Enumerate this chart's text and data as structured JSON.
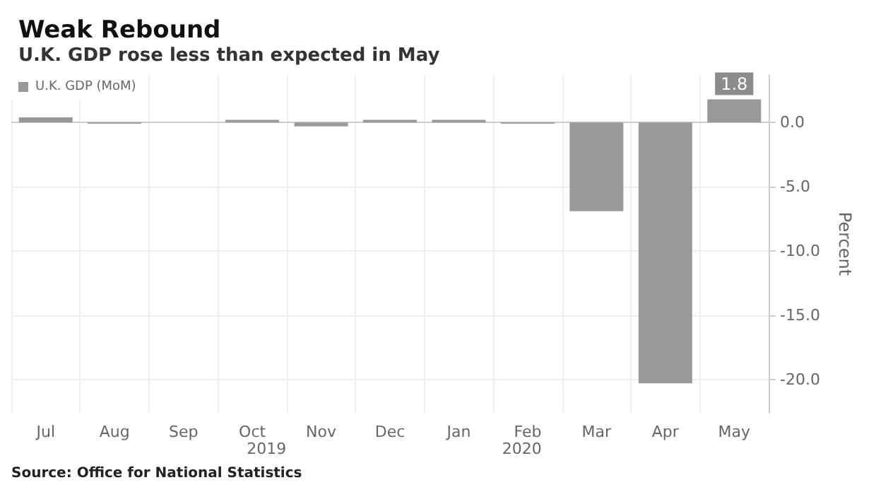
{
  "chart_data": {
    "type": "bar",
    "title": "Weak Rebound",
    "subtitle": "U.K. GDP rose less than expected in May",
    "ylabel": "Percent",
    "categories": [
      "Jul",
      "Aug",
      "Sep",
      "Oct",
      "Nov",
      "Dec",
      "Jan",
      "Feb",
      "Mar",
      "Apr",
      "May"
    ],
    "series": [
      {
        "name": "U.K. GDP (MoM)",
        "color": "#999999",
        "values": [
          0.4,
          -0.1,
          0.0,
          0.2,
          -0.3,
          0.2,
          0.2,
          -0.1,
          -6.9,
          -20.3,
          1.8
        ],
        "value_labels": [
          null,
          null,
          null,
          null,
          null,
          null,
          null,
          null,
          null,
          null,
          "1.8"
        ]
      }
    ],
    "ylim": [
      -22.6,
      3.7
    ],
    "yticks": [
      {
        "value": 0,
        "label": "0.0"
      },
      {
        "value": -5,
        "label": "-5.0"
      },
      {
        "value": -10,
        "label": "-10.0"
      },
      {
        "value": -15,
        "label": "-15.0"
      },
      {
        "value": -20,
        "label": "-20.0"
      }
    ],
    "grid": true,
    "legend": "top left",
    "annotations": [
      "2019",
      "2020",
      "Source: Office for National Statistics"
    ]
  }
}
